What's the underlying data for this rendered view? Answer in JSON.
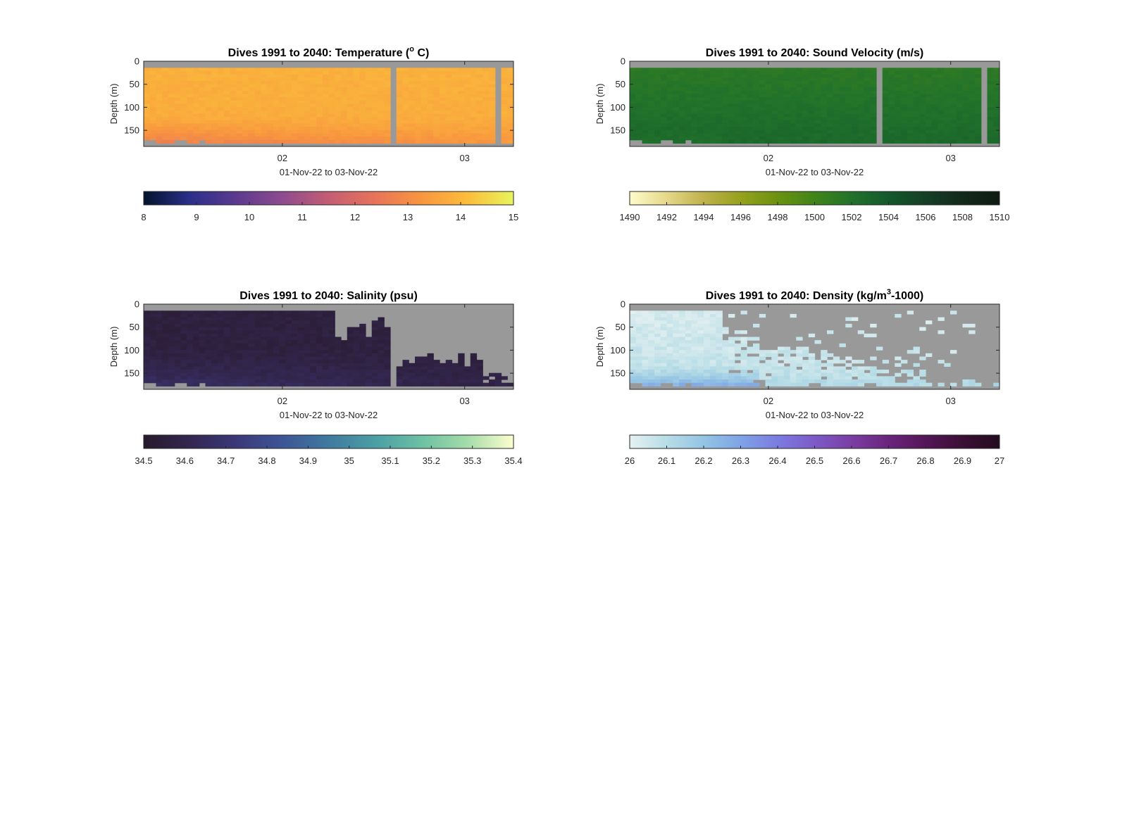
{
  "chart_data": [
    {
      "type": "heatmap",
      "title": "Dives 1991 to 2040: Temperature (",
      "title_sup": "o",
      "title_tail": " C)",
      "ylabel": "Depth (m)",
      "xlabel": "01-Nov-22 to 03-Nov-22",
      "y_ticks": [
        "0",
        "50",
        "100",
        "150"
      ],
      "ylim": [
        0,
        185
      ],
      "y_reversed": true,
      "x_ticks": [
        "02",
        "03"
      ],
      "colorbar": {
        "ticks": [
          "8",
          "9",
          "10",
          "11",
          "12",
          "13",
          "14",
          "15"
        ],
        "range": [
          8,
          15
        ],
        "colors": [
          "#03132c",
          "#2b2f8a",
          "#5b3a8f",
          "#8e4b8f",
          "#c35d74",
          "#e8735a",
          "#f8963f",
          "#fbbd3b",
          "#e8f55c"
        ]
      },
      "field": {
        "dominant_value": 13.7,
        "deep_value": 12.3,
        "gaps": [
          "dives ~2030 (x≈0.66)",
          "dive ~2038 (x≈0.95)"
        ]
      },
      "missing_color": "#999999"
    },
    {
      "type": "heatmap",
      "title": "Dives 1991 to 2040: Sound Velocity (m/s)",
      "title_sup": "",
      "title_tail": "",
      "ylabel": "Depth (m)",
      "xlabel": "01-Nov-22 to 03-Nov-22",
      "y_ticks": [
        "0",
        "50",
        "100",
        "150"
      ],
      "ylim": [
        0,
        185
      ],
      "y_reversed": true,
      "x_ticks": [
        "02",
        "03"
      ],
      "colorbar": {
        "ticks": [
          "1490",
          "1492",
          "1494",
          "1496",
          "1498",
          "1500",
          "1502",
          "1504",
          "1506",
          "1508",
          "1510"
        ],
        "range": [
          1490,
          1510
        ],
        "colors": [
          "#fefccb",
          "#e6d889",
          "#bfb24b",
          "#96a11c",
          "#6b9210",
          "#418419",
          "#21722b",
          "#14582c",
          "#153f25",
          "#13291a",
          "#0e1a11"
        ]
      },
      "field": {
        "dominant_value": 1502.0,
        "deep_value": 1503.3,
        "gaps": [
          "dives ~2030 (x≈0.66)",
          "dive ~2038 (x≈0.95)"
        ]
      },
      "missing_color": "#999999"
    },
    {
      "type": "heatmap",
      "title": "Dives 1991 to 2040: Salinity (psu)",
      "title_sup": "",
      "title_tail": "",
      "ylabel": "Depth (m)",
      "xlabel": "01-Nov-22 to 03-Nov-22",
      "y_ticks": [
        "0",
        "50",
        "100",
        "150"
      ],
      "ylim": [
        0,
        185
      ],
      "y_reversed": true,
      "x_ticks": [
        "02",
        "03"
      ],
      "colorbar": {
        "ticks": [
          "34.5",
          "34.6",
          "34.7",
          "34.8",
          "34.9",
          "35",
          "35.1",
          "35.2",
          "35.3",
          "35.4"
        ],
        "range": [
          34.5,
          35.4
        ],
        "colors": [
          "#281a2c",
          "#332750",
          "#3b3879",
          "#3d5596",
          "#3f7a9f",
          "#4b9ea5",
          "#6cc0a4",
          "#a4dca9",
          "#fdfece"
        ]
      },
      "field": {
        "dominant_value": 34.56,
        "deep_value": 34.68,
        "gaps": [
          "no data after midday 02-Nov in upper layer"
        ]
      },
      "missing_color": "#999999"
    },
    {
      "type": "heatmap",
      "title": "Dives 1991 to 2040: Density (kg/m",
      "title_sup": "3",
      "title_tail": "-1000)",
      "ylabel": "Depth (m)",
      "xlabel": "01-Nov-22 to 03-Nov-22",
      "y_ticks": [
        "0",
        "50",
        "100",
        "150"
      ],
      "ylim": [
        0,
        185
      ],
      "y_reversed": true,
      "x_ticks": [
        "02",
        "03"
      ],
      "colorbar": {
        "ticks": [
          "26",
          "26.1",
          "26.2",
          "26.3",
          "26.4",
          "26.5",
          "26.6",
          "26.7",
          "26.8",
          "26.9",
          "27"
        ],
        "range": [
          26,
          27
        ],
        "colors": [
          "#e6f1f1",
          "#b7dde6",
          "#94c4e4",
          "#7fa3e6",
          "#7b7ce0",
          "#7d5ac7",
          "#7a3ea3",
          "#6a247c",
          "#541657",
          "#3b0f35",
          "#240c1e"
        ]
      },
      "field": {
        "dominant_value": 26.05,
        "deep_value": 26.3,
        "gaps": [
          "sparse data after 02-Nov"
        ]
      },
      "missing_color": "#999999"
    }
  ]
}
